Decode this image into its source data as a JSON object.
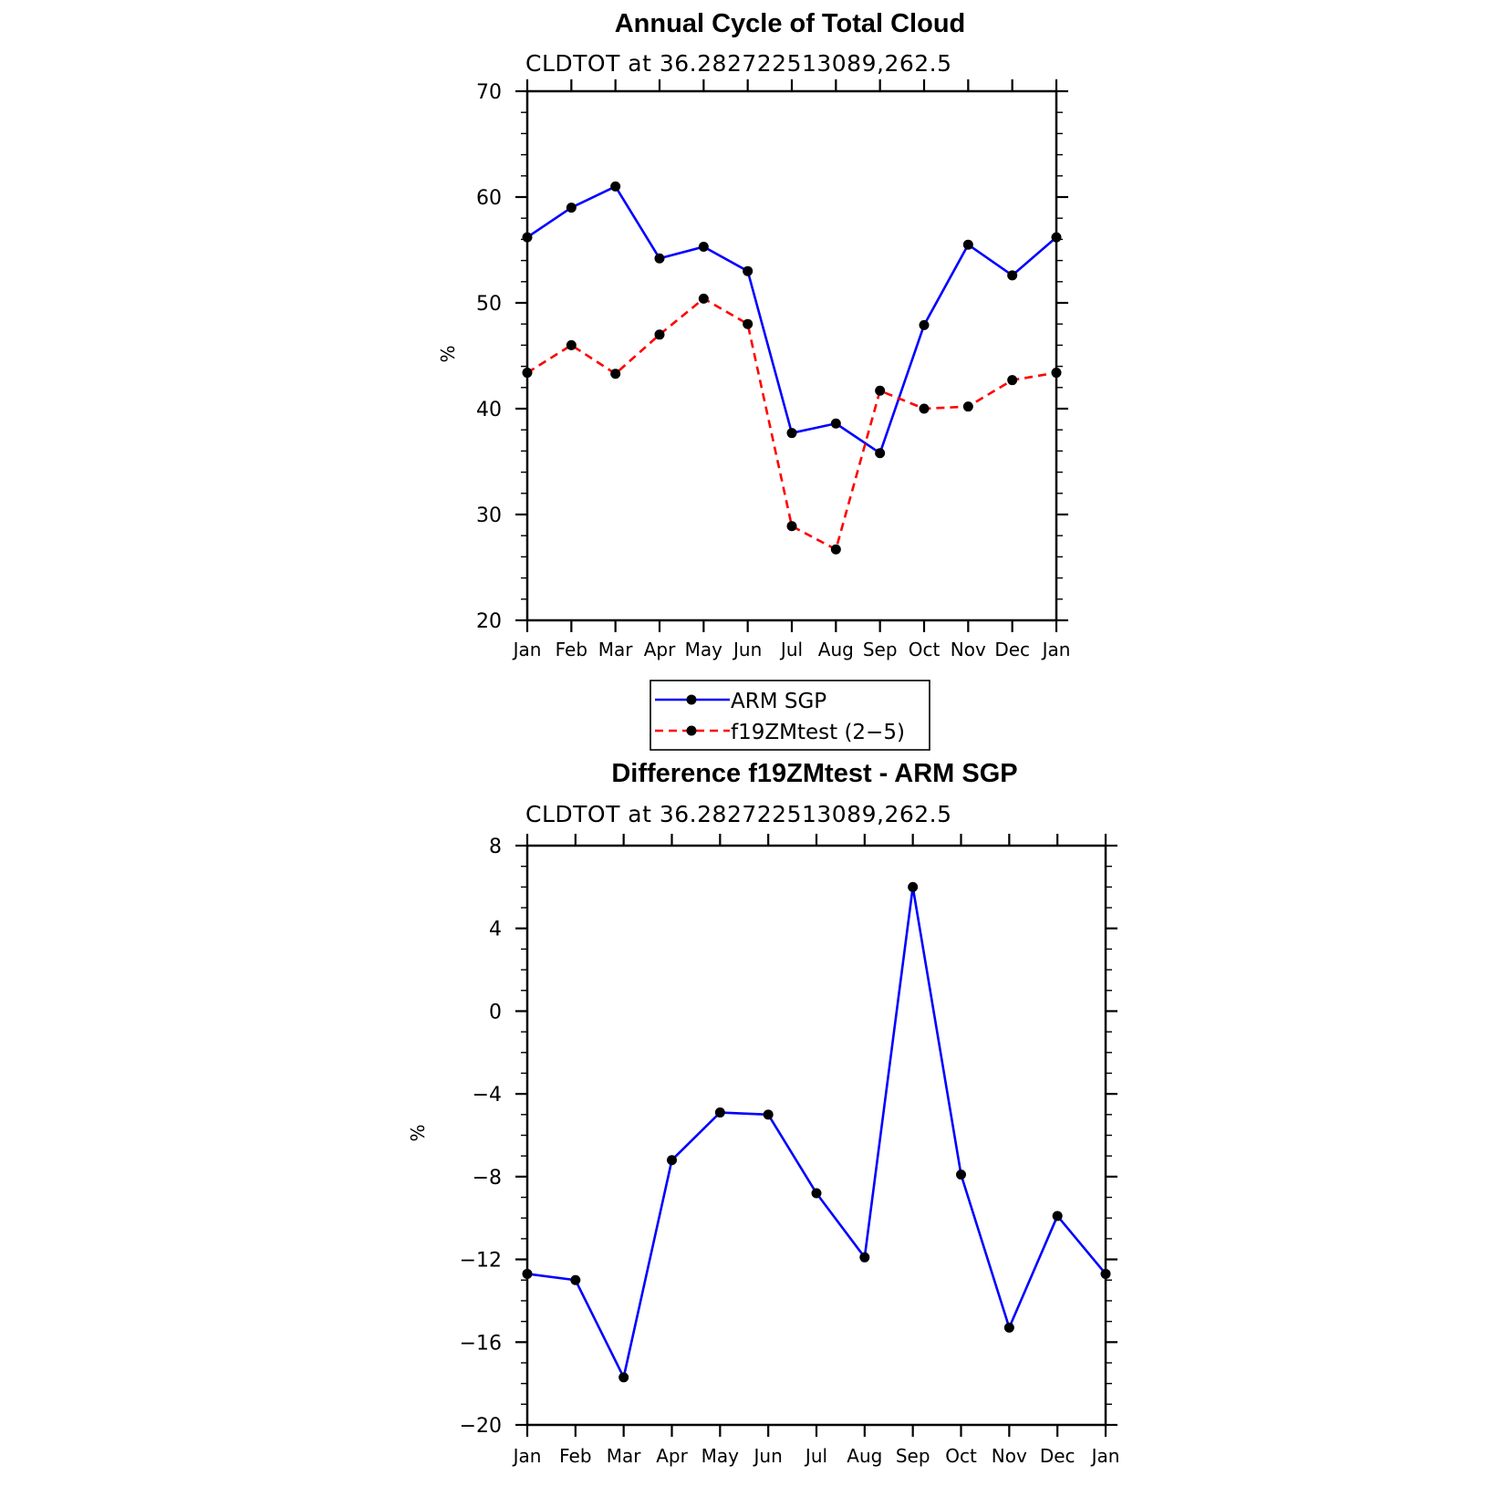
{
  "chart_data": [
    {
      "type": "line",
      "title": "Annual Cycle of Total Cloud",
      "subtitle": "CLDTOT at 36.282722513089,262.5",
      "ylabel": "%",
      "xlabel": "",
      "categories": [
        "Jan",
        "Feb",
        "Mar",
        "Apr",
        "May",
        "Jun",
        "Jul",
        "Aug",
        "Sep",
        "Oct",
        "Nov",
        "Dec",
        "Jan"
      ],
      "ylim": [
        20,
        70
      ],
      "yticks": [
        20,
        30,
        40,
        50,
        60,
        70
      ],
      "grid": false,
      "series": [
        {
          "name": "ARM SGP",
          "color": "#0000ff",
          "style": "solid",
          "marker": "filled-circle",
          "values": [
            56.2,
            59.0,
            61.0,
            54.2,
            55.3,
            53.0,
            37.7,
            38.6,
            35.8,
            47.9,
            55.5,
            52.6,
            56.2
          ]
        },
        {
          "name": "f19ZMtest (2−5)",
          "color": "#ff0000",
          "style": "dashed",
          "marker": "filled-circle",
          "values": [
            43.4,
            46.0,
            43.3,
            47.0,
            50.4,
            48.0,
            28.9,
            26.7,
            41.7,
            40.0,
            40.2,
            42.7,
            43.4
          ]
        }
      ],
      "legend": {
        "placement": "below",
        "entries": [
          "ARM SGP",
          "f19ZMtest (2−5)"
        ]
      }
    },
    {
      "type": "line",
      "title": "Difference f19ZMtest - ARM SGP",
      "subtitle": "CLDTOT at 36.282722513089,262.5",
      "ylabel": "%",
      "xlabel": "",
      "categories": [
        "Jan",
        "Feb",
        "Mar",
        "Apr",
        "May",
        "Jun",
        "Jul",
        "Aug",
        "Sep",
        "Oct",
        "Nov",
        "Dec",
        "Jan"
      ],
      "ylim": [
        -20,
        8
      ],
      "yticks": [
        -20,
        -16,
        -12,
        -8,
        -4,
        0,
        4,
        8
      ],
      "ytick_labels": [
        "−20",
        "−16",
        "−12",
        "−8",
        "−4",
        "0",
        "4",
        "8"
      ],
      "grid": false,
      "series": [
        {
          "color": "#0000ff",
          "style": "solid",
          "marker": "filled-circle",
          "values": [
            -12.7,
            -13.0,
            -17.7,
            -7.2,
            -4.9,
            -5.0,
            -8.8,
            -11.9,
            6.0,
            -7.9,
            -15.3,
            -9.9,
            -12.7
          ]
        }
      ]
    }
  ]
}
